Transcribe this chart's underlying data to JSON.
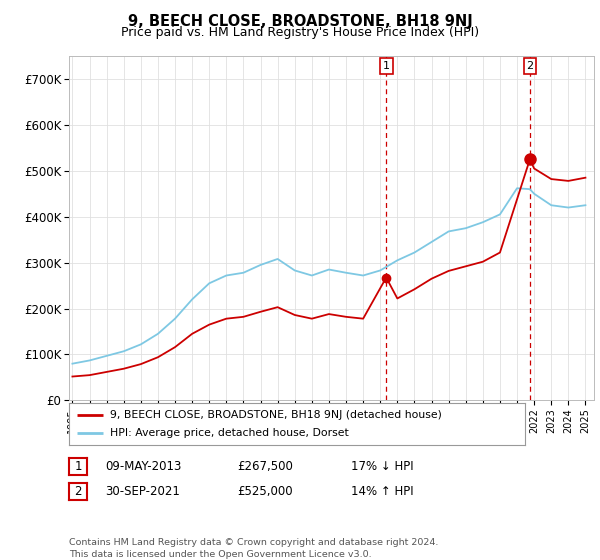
{
  "title": "9, BEECH CLOSE, BROADSTONE, BH18 9NJ",
  "subtitle": "Price paid vs. HM Land Registry's House Price Index (HPI)",
  "ylabel_ticks": [
    "£0",
    "£100K",
    "£200K",
    "£300K",
    "£400K",
    "£500K",
    "£600K",
    "£700K"
  ],
  "ylim": [
    0,
    750000
  ],
  "hpi_color": "#7ec8e3",
  "price_color": "#cc0000",
  "vline1_x": 2013.35,
  "vline2_x": 2021.75,
  "point1_x": 2013.35,
  "point1_y": 267500,
  "point2_x": 2021.75,
  "point2_y": 525000,
  "legend_label_price": "9, BEECH CLOSE, BROADSTONE, BH18 9NJ (detached house)",
  "legend_label_hpi": "HPI: Average price, detached house, Dorset",
  "transaction1_date": "09-MAY-2013",
  "transaction1_price": "£267,500",
  "transaction1_hpi": "17% ↓ HPI",
  "transaction2_date": "30-SEP-2021",
  "transaction2_price": "£525,000",
  "transaction2_hpi": "14% ↑ HPI",
  "footer": "Contains HM Land Registry data © Crown copyright and database right 2024.\nThis data is licensed under the Open Government Licence v3.0.",
  "background_color": "#ffffff",
  "grid_color": "#e0e0e0",
  "xlim_left": 1994.8,
  "xlim_right": 2025.5
}
